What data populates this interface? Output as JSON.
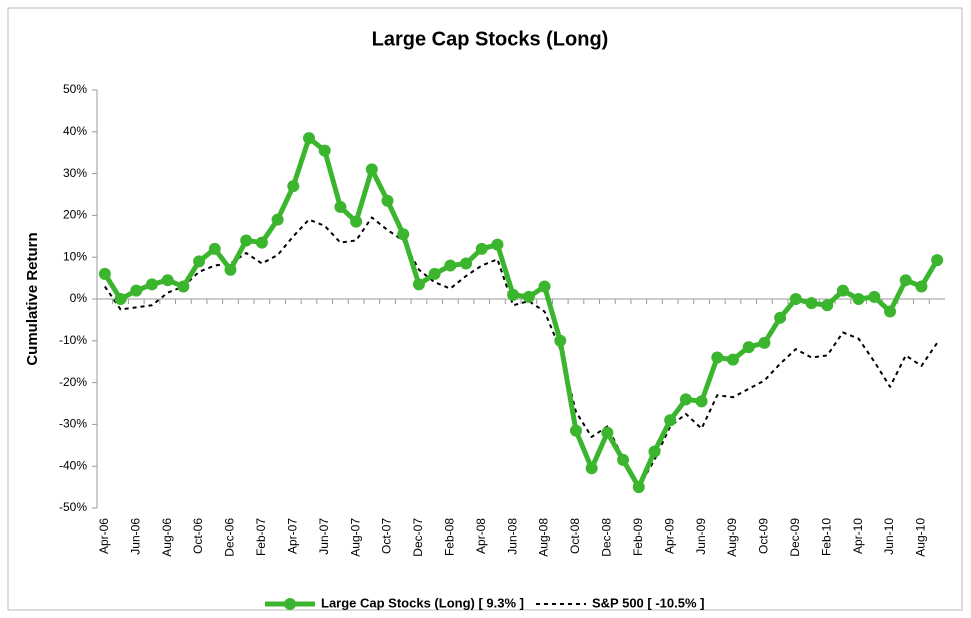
{
  "chart_data": {
    "type": "line",
    "title": "Large Cap Stocks (Long)",
    "y_label": "Cumulative Return",
    "categories": [
      "Apr-06",
      null,
      "Jun-06",
      null,
      "Aug-06",
      null,
      "Oct-06",
      null,
      "Dec-06",
      null,
      "Feb-07",
      null,
      "Apr-07",
      null,
      "Jun-07",
      null,
      "Aug-07",
      null,
      "Oct-07",
      null,
      "Dec-07",
      null,
      "Feb-08",
      null,
      "Apr-08",
      null,
      "Jun-08",
      null,
      "Aug-08",
      null,
      "Oct-08",
      null,
      "Dec-08",
      null,
      "Feb-09",
      null,
      "Apr-09",
      null,
      "Jun-09",
      null,
      "Aug-09",
      null,
      "Oct-09",
      null,
      "Dec-09",
      null,
      "Feb-10",
      null,
      "Apr-10",
      null,
      "Jun-10",
      null,
      "Aug-10",
      null
    ],
    "series": [
      {
        "name": "Large Cap Stocks (Long) [ 9.3% ]",
        "color": "#3cb52e",
        "style": "solid-markers",
        "values": [
          6,
          0,
          2,
          3.5,
          4.5,
          3,
          9,
          12,
          7,
          14,
          13.5,
          19,
          27,
          38.5,
          35.5,
          22,
          18.5,
          31,
          23.5,
          15.5,
          3.5,
          6,
          8,
          8.5,
          12,
          13,
          1,
          0.5,
          3,
          -10,
          -31.5,
          -40.5,
          -32,
          -38.5,
          -45,
          -36.5,
          -29,
          -24,
          -24.5,
          -14,
          -14.5,
          -11.5,
          -10.5,
          -4.5,
          0,
          -1,
          -1.5,
          2,
          0,
          0.5,
          -3,
          4.5,
          3,
          9.3
        ]
      },
      {
        "name": "S&P 500 [ -10.5% ]",
        "color": "#000000",
        "style": "dashed",
        "values": [
          3,
          -2.5,
          -2,
          -1.5,
          1.5,
          3,
          6.5,
          8,
          8.5,
          11,
          8.5,
          10.5,
          15,
          19,
          17.5,
          13.5,
          14,
          19.5,
          16.5,
          14,
          7,
          4,
          2.5,
          5.5,
          8,
          9.5,
          -1.5,
          -0.5,
          -3,
          -12,
          -27,
          -33,
          -30.5,
          -38,
          -45,
          -38.5,
          -30.5,
          -27.5,
          -31,
          -23,
          -23.5,
          -21.5,
          -19.5,
          -15.5,
          -12,
          -14,
          -13.5,
          -8,
          -9.5,
          -15,
          -21,
          -13.5,
          -16,
          -10.5
        ]
      }
    ],
    "ylim": [
      -50,
      50
    ],
    "yticks": [
      {
        "value": -50,
        "label": "-50%"
      },
      {
        "value": -40,
        "label": "-40%"
      },
      {
        "value": -30,
        "label": "-30%"
      },
      {
        "value": -20,
        "label": "-20%"
      },
      {
        "value": -10,
        "label": "-10%"
      },
      {
        "value": 0,
        "label": "0%"
      },
      {
        "value": 10,
        "label": "10%"
      },
      {
        "value": 20,
        "label": "20%"
      },
      {
        "value": 30,
        "label": "30%"
      },
      {
        "value": 40,
        "label": "40%"
      },
      {
        "value": 50,
        "label": "50%"
      }
    ],
    "legend": "bottom"
  }
}
